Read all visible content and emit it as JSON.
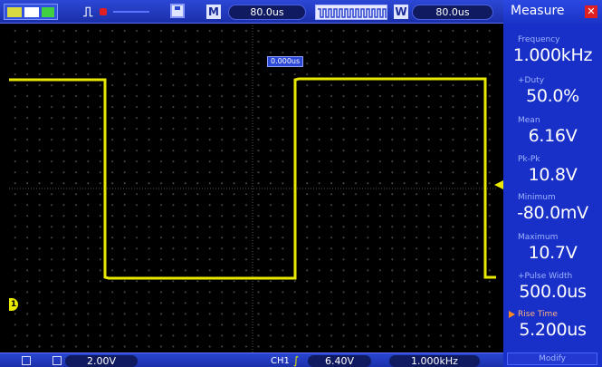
{
  "topbar": {
    "run_state_icon": "run-state-icon",
    "trigger_icon": "⎍",
    "save_icon": "save-icon",
    "memory_label": "M",
    "memory_time": "80.0us",
    "window_label": "W",
    "window_time": "80.0us"
  },
  "screen": {
    "trigger_position": "0.000us",
    "ch1_marker": "1",
    "trace_color": "#e8e800"
  },
  "bottombar": {
    "ch1_scale": "2.00V",
    "ch1_label": "CH1",
    "trigger_edge": "rising",
    "trigger_level": "6.40V",
    "freq_counter": "1.000kHz"
  },
  "measure": {
    "title": "Measure",
    "items": [
      {
        "name": "Frequency",
        "value": "1.000kHz"
      },
      {
        "name": "+Duty",
        "value": "50.0%"
      },
      {
        "name": "Mean",
        "value": "6.16V"
      },
      {
        "name": "Pk-Pk",
        "value": "10.8V"
      },
      {
        "name": "Minimum",
        "value": "-80.0mV"
      },
      {
        "name": "Maximum",
        "value": "10.7V"
      },
      {
        "name": "+Pulse Width",
        "value": "500.0us"
      },
      {
        "name": "Rise Time",
        "value": "5.200us"
      }
    ],
    "modify_label": "Modify"
  },
  "colors": {
    "panel_blue": "#1830c8",
    "trace_yellow": "#e8e800",
    "accent_red": "#e02020"
  }
}
